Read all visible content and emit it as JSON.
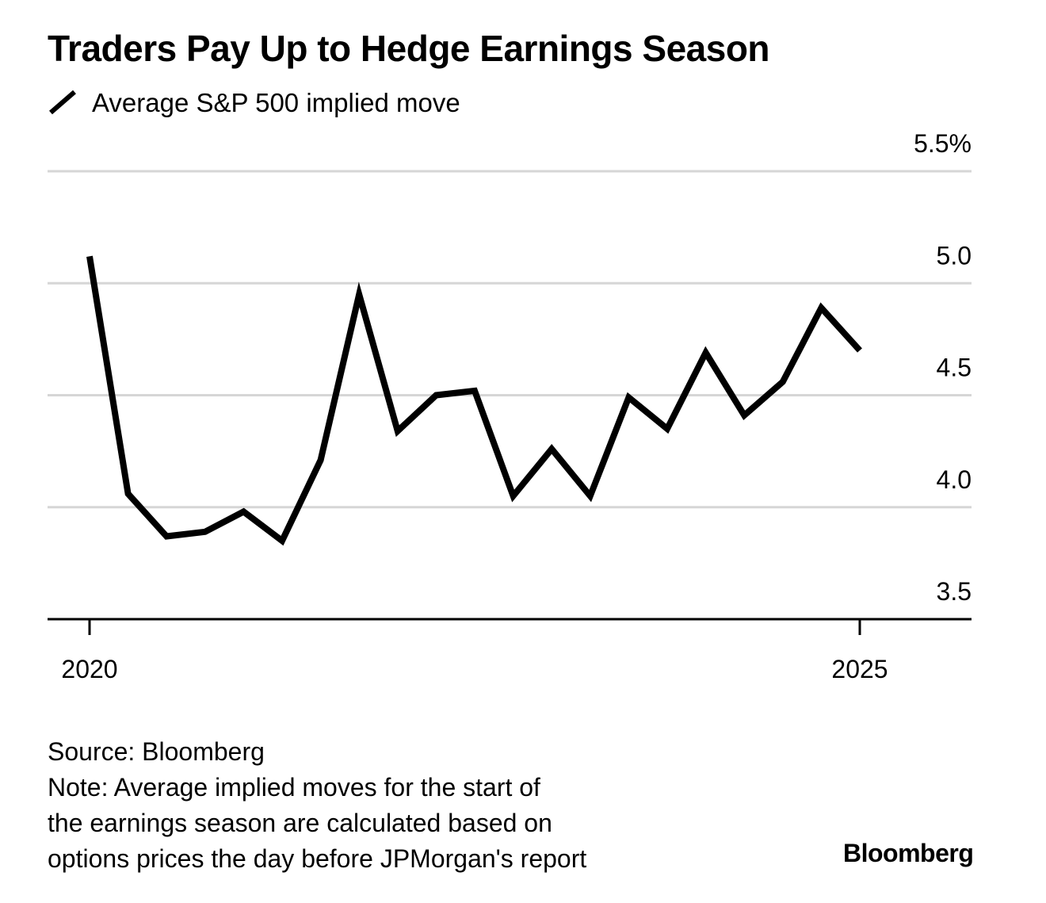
{
  "chart_data": {
    "type": "line",
    "title": "Traders Pay Up to Hedge Earnings Season",
    "subtitle": "",
    "xlabel": "",
    "ylabel": "",
    "x_start": 2020,
    "x_end": 2025,
    "x_ticks": [
      {
        "value": 2020,
        "label": "2020"
      },
      {
        "value": 2025,
        "label": "2025"
      }
    ],
    "ylim": [
      3.5,
      5.5
    ],
    "y_ticks": [
      {
        "value": 5.5,
        "label": "5.5%"
      },
      {
        "value": 5.0,
        "label": "5.0"
      },
      {
        "value": 4.5,
        "label": "4.5"
      },
      {
        "value": 4.0,
        "label": "4.0"
      },
      {
        "value": 3.5,
        "label": "3.5"
      }
    ],
    "grid": true,
    "legend_position": "top-left",
    "series": [
      {
        "name": "Average S&P 500 implied move",
        "color": "#000000",
        "x": [
          2020,
          2020.25,
          2020.5,
          2020.75,
          2021,
          2021.25,
          2021.5,
          2021.75,
          2022,
          2022.25,
          2022.5,
          2022.75,
          2023,
          2023.25,
          2023.5,
          2023.75,
          2024,
          2024.25,
          2024.5,
          2024.75,
          2025
        ],
        "values": [
          5.12,
          4.06,
          3.87,
          3.89,
          3.98,
          3.85,
          4.21,
          4.95,
          4.34,
          4.5,
          4.52,
          4.05,
          4.26,
          4.05,
          4.49,
          4.35,
          4.69,
          4.41,
          4.56,
          4.89,
          4.7
        ]
      }
    ]
  },
  "footer": {
    "source": "Source: Bloomberg",
    "note_lines": [
      "Note: Average implied moves for the start of",
      "the earnings season are calculated based on",
      "options prices the day before JPMorgan's report"
    ]
  },
  "brand": "Bloomberg"
}
